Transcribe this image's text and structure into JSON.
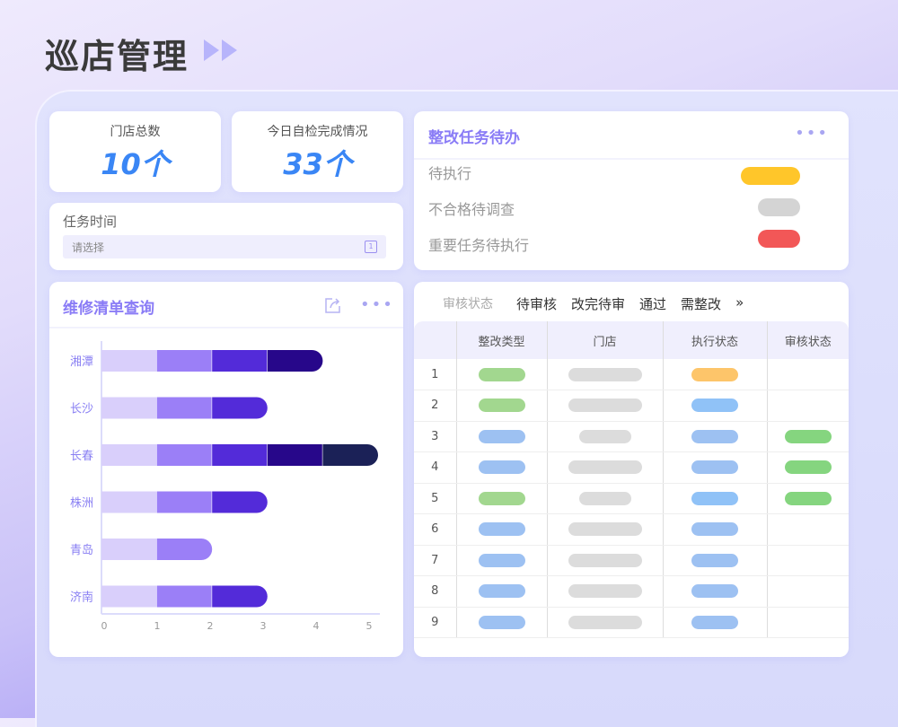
{
  "header": {
    "title": "巡店管理"
  },
  "stats": [
    {
      "label": "门店总数",
      "value": "10个"
    },
    {
      "label": "今日自检完成情况",
      "value": "33个"
    }
  ],
  "task_time": {
    "label": "任务时间",
    "placeholder": "请选择",
    "icon": "calendar-icon"
  },
  "todo": {
    "title": "整改任务待办",
    "items": [
      {
        "label": "待执行",
        "color": "#ffc62a"
      },
      {
        "label": "不合格待调查",
        "color": "#d4d4d4"
      },
      {
        "label": "重要任务待执行",
        "color": "#f25757"
      }
    ]
  },
  "repair": {
    "title": "维修清单查询"
  },
  "chart_data": {
    "type": "bar",
    "orientation": "horizontal",
    "stacked": true,
    "categories": [
      "湘潭",
      "长沙",
      "长春",
      "株洲",
      "青岛",
      "济南"
    ],
    "series": [
      {
        "values": [
          1,
          1,
          1,
          1,
          1,
          1
        ],
        "color": "#d9cffb"
      },
      {
        "values": [
          1,
          1,
          1,
          1,
          1,
          1
        ],
        "color": "#9b7ff7"
      },
      {
        "values": [
          1,
          1,
          1,
          1,
          0,
          1
        ],
        "color": "#532bd9"
      },
      {
        "values": [
          1,
          0,
          1,
          0,
          0,
          0
        ],
        "color": "#27078a"
      },
      {
        "values": [
          0,
          0,
          1,
          0,
          0,
          0
        ],
        "color": "#1b2157"
      }
    ],
    "xticks": [
      "0",
      "1",
      "2",
      "3",
      "4",
      "5"
    ],
    "xlim": [
      0,
      5
    ]
  },
  "review": {
    "tabs": [
      "审核状态",
      "待审核",
      "改完待审",
      "通过",
      "需整改",
      "»"
    ],
    "columns": [
      "",
      "整改类型",
      "门店",
      "执行状态",
      "审核状态"
    ],
    "rows": [
      {
        "n": "1",
        "type": "#a2d78f",
        "store": "long",
        "exec": "#fdc56a",
        "audit": ""
      },
      {
        "n": "2",
        "type": "#a2d78f",
        "store": "long",
        "exec": "#90c2f7",
        "audit": ""
      },
      {
        "n": "3",
        "type": "#9dc1f2",
        "store": "short",
        "exec": "#9dc1f2",
        "audit": "#85d57f"
      },
      {
        "n": "4",
        "type": "#9dc1f2",
        "store": "long",
        "exec": "#9dc1f2",
        "audit": "#85d57f"
      },
      {
        "n": "5",
        "type": "#a2d78f",
        "store": "short",
        "exec": "#90c2f7",
        "audit": "#85d57f"
      },
      {
        "n": "6",
        "type": "#9dc1f2",
        "store": "long",
        "exec": "#9dc1f2",
        "audit": ""
      },
      {
        "n": "7",
        "type": "#9dc1f2",
        "store": "long",
        "exec": "#9dc1f2",
        "audit": ""
      },
      {
        "n": "8",
        "type": "#9dc1f2",
        "store": "long",
        "exec": "#9dc1f2",
        "audit": ""
      },
      {
        "n": "9",
        "type": "#9dc1f2",
        "store": "long",
        "exec": "#9dc1f2",
        "audit": ""
      }
    ]
  }
}
